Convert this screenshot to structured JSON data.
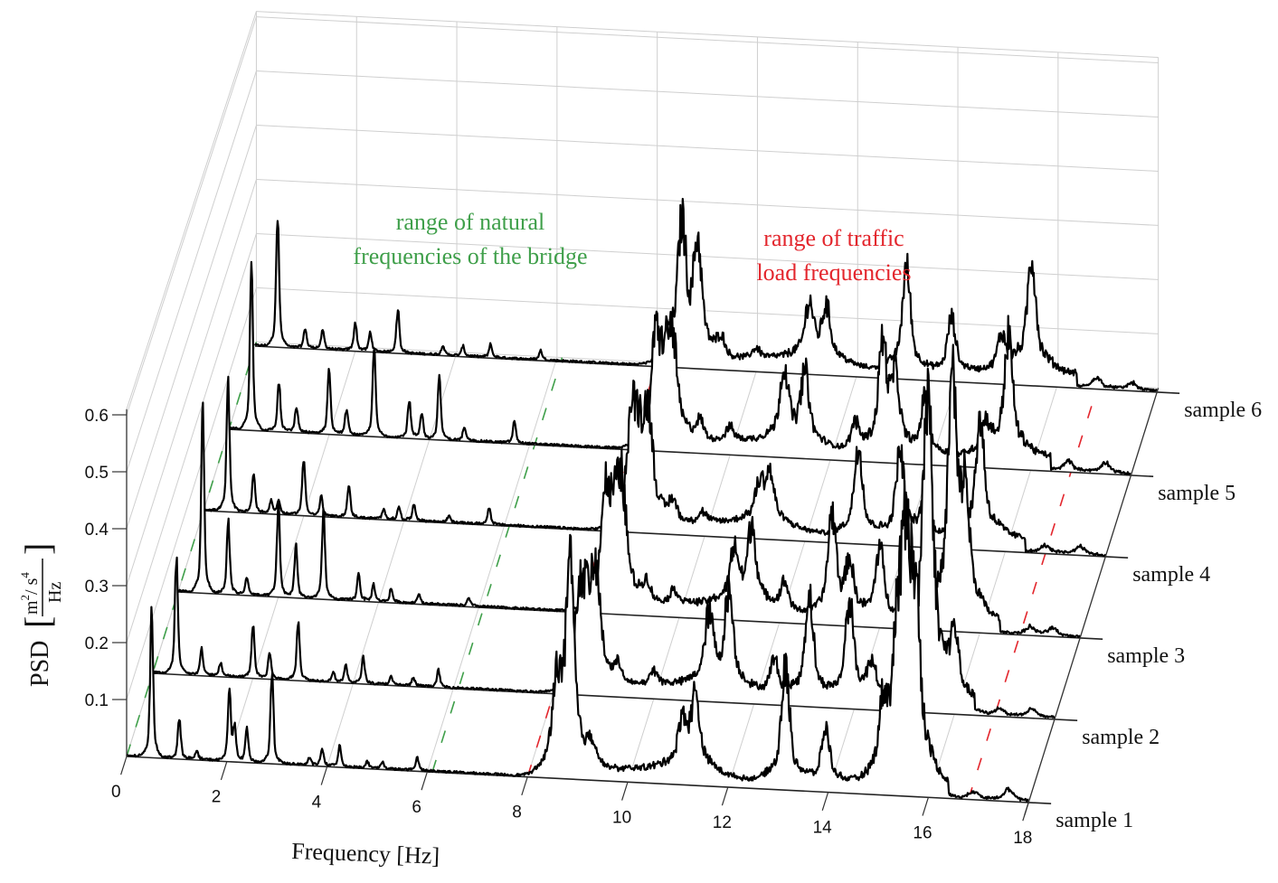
{
  "chart_data": {
    "type": "line",
    "subtype": "3d-waterfall",
    "xlabel": "Frequency [Hz]",
    "ylabel": {
      "main": "PSD",
      "num_base": "m",
      "num_exp": "2",
      "num_sep": "/ s",
      "num_exp2": "4",
      "den": "Hz"
    },
    "xlim": [
      0,
      18
    ],
    "zlim": [
      0,
      0.6
    ],
    "xticks": [
      "0",
      "2",
      "4",
      "6",
      "8",
      "10",
      "12",
      "14",
      "16",
      "18"
    ],
    "zticks": [
      "0.1",
      "0.2",
      "0.3",
      "0.4",
      "0.5",
      "0.6"
    ],
    "grid": true,
    "annotations": {
      "natural": {
        "line1": "range of natural",
        "line2": "frequencies of the bridge",
        "color": "#3f9f4a",
        "range_hz": [
          0,
          6.1
        ]
      },
      "traffic": {
        "line1": "range of traffic",
        "line2": "load frequencies",
        "color": "#e3262d",
        "range_hz": [
          8.0,
          16.8
        ]
      }
    },
    "series": [
      {
        "name": "sample 1",
        "peaks": [
          [
            0.5,
            0.22
          ],
          [
            1.05,
            0.06
          ],
          [
            1.4,
            0.012
          ],
          [
            2.05,
            0.105
          ],
          [
            2.15,
            0.05
          ],
          [
            2.4,
            0.05
          ],
          [
            2.9,
            0.14
          ],
          [
            3.65,
            0.01
          ],
          [
            3.9,
            0.025
          ],
          [
            4.25,
            0.03
          ],
          [
            4.8,
            0.01
          ],
          [
            5.1,
            0.01
          ],
          [
            5.8,
            0.02
          ],
          [
            8.6,
            0.11
          ],
          [
            8.85,
            0.26
          ],
          [
            9.3,
            0.03
          ],
          [
            11.1,
            0.06
          ],
          [
            11.35,
            0.095
          ],
          [
            13.15,
            0.155
          ],
          [
            13.95,
            0.075
          ],
          [
            15.1,
            0.08
          ],
          [
            15.38,
            0.15
          ],
          [
            15.56,
            0.3
          ],
          [
            15.75,
            0.2
          ],
          [
            16.9,
            0.01
          ],
          [
            17.6,
            0.015
          ]
        ]
      },
      {
        "name": "sample 2",
        "peaks": [
          [
            0.47,
            0.18
          ],
          [
            0.97,
            0.04
          ],
          [
            1.35,
            0.02
          ],
          [
            2.0,
            0.08
          ],
          [
            2.33,
            0.04
          ],
          [
            2.9,
            0.09
          ],
          [
            3.6,
            0.015
          ],
          [
            3.85,
            0.025
          ],
          [
            4.2,
            0.04
          ],
          [
            4.75,
            0.012
          ],
          [
            5.2,
            0.012
          ],
          [
            5.7,
            0.025
          ],
          [
            8.52,
            0.11
          ],
          [
            8.68,
            0.09
          ],
          [
            8.85,
            0.13
          ],
          [
            9.3,
            0.025
          ],
          [
            10.0,
            0.02
          ],
          [
            11.1,
            0.09
          ],
          [
            11.5,
            0.125
          ],
          [
            12.4,
            0.05
          ],
          [
            13.1,
            0.145
          ],
          [
            13.9,
            0.135
          ],
          [
            14.35,
            0.05
          ],
          [
            15.4,
            0.2
          ],
          [
            15.5,
            0.28
          ],
          [
            16.0,
            0.08
          ],
          [
            16.9,
            0.01
          ],
          [
            17.55,
            0.012
          ]
        ]
      },
      {
        "name": "sample 3",
        "peaks": [
          [
            0.49,
            0.28
          ],
          [
            1.0,
            0.11
          ],
          [
            1.37,
            0.027
          ],
          [
            2.0,
            0.14
          ],
          [
            2.35,
            0.08
          ],
          [
            2.9,
            0.135
          ],
          [
            3.6,
            0.04
          ],
          [
            3.9,
            0.025
          ],
          [
            4.25,
            0.02
          ],
          [
            4.8,
            0.015
          ],
          [
            5.8,
            0.012
          ],
          [
            8.52,
            0.135
          ],
          [
            8.7,
            0.1
          ],
          [
            8.86,
            0.14
          ],
          [
            9.35,
            0.03
          ],
          [
            9.9,
            0.02
          ],
          [
            11.1,
            0.07
          ],
          [
            11.45,
            0.105
          ],
          [
            12.1,
            0.04
          ],
          [
            13.05,
            0.14
          ],
          [
            13.4,
            0.07
          ],
          [
            14.0,
            0.1
          ],
          [
            15.45,
            0.31
          ],
          [
            15.7,
            0.15
          ],
          [
            17.0,
            0.01
          ],
          [
            17.45,
            0.01
          ]
        ]
      },
      {
        "name": "sample 4",
        "peaks": [
          [
            0.49,
            0.2
          ],
          [
            1.0,
            0.06
          ],
          [
            1.35,
            0.02
          ],
          [
            1.5,
            0.02
          ],
          [
            2.0,
            0.09
          ],
          [
            2.35,
            0.03
          ],
          [
            2.9,
            0.05
          ],
          [
            3.6,
            0.015
          ],
          [
            3.9,
            0.02
          ],
          [
            4.2,
            0.025
          ],
          [
            4.9,
            0.01
          ],
          [
            5.7,
            0.028
          ],
          [
            8.54,
            0.13
          ],
          [
            8.7,
            0.1
          ],
          [
            8.88,
            0.135
          ],
          [
            9.37,
            0.03
          ],
          [
            9.96,
            0.015
          ],
          [
            11.1,
            0.05
          ],
          [
            11.3,
            0.065
          ],
          [
            13.07,
            0.13
          ],
          [
            13.9,
            0.12
          ],
          [
            14.4,
            0.05
          ],
          [
            15.5,
            0.16
          ],
          [
            16.8,
            0.01
          ],
          [
            17.5,
            0.012
          ]
        ]
      },
      {
        "name": "sample 5",
        "peaks": [
          [
            0.45,
            0.25
          ],
          [
            1.0,
            0.075
          ],
          [
            1.35,
            0.038
          ],
          [
            2.0,
            0.105
          ],
          [
            2.35,
            0.04
          ],
          [
            2.9,
            0.14
          ],
          [
            3.6,
            0.06
          ],
          [
            3.85,
            0.04
          ],
          [
            4.2,
            0.1
          ],
          [
            4.7,
            0.02
          ],
          [
            5.7,
            0.035
          ],
          [
            8.52,
            0.13
          ],
          [
            8.7,
            0.09
          ],
          [
            8.86,
            0.125
          ],
          [
            9.4,
            0.03
          ],
          [
            10.0,
            0.02
          ],
          [
            11.08,
            0.1
          ],
          [
            11.5,
            0.095
          ],
          [
            12.5,
            0.04
          ],
          [
            13.05,
            0.15
          ],
          [
            13.3,
            0.1
          ],
          [
            13.9,
            0.085
          ],
          [
            15.1,
            0.04
          ],
          [
            15.56,
            0.16
          ],
          [
            16.75,
            0.015
          ],
          [
            17.5,
            0.015
          ]
        ]
      },
      {
        "name": "sample 6",
        "peaks": [
          [
            0.45,
            0.21
          ],
          [
            1.0,
            0.03
          ],
          [
            1.35,
            0.03
          ],
          [
            2.0,
            0.045
          ],
          [
            2.3,
            0.03
          ],
          [
            2.85,
            0.07
          ],
          [
            3.75,
            0.015
          ],
          [
            4.15,
            0.015
          ],
          [
            4.7,
            0.02
          ],
          [
            5.7,
            0.015
          ],
          [
            8.27,
            0.03
          ],
          [
            8.52,
            0.18
          ],
          [
            8.83,
            0.155
          ],
          [
            9.3,
            0.03
          ],
          [
            10.0,
            0.015
          ],
          [
            11.06,
            0.075
          ],
          [
            11.4,
            0.07
          ],
          [
            13.0,
            0.15
          ],
          [
            13.9,
            0.08
          ],
          [
            14.9,
            0.05
          ],
          [
            15.5,
            0.16
          ],
          [
            16.8,
            0.015
          ],
          [
            17.5,
            0.01
          ]
        ]
      }
    ]
  }
}
